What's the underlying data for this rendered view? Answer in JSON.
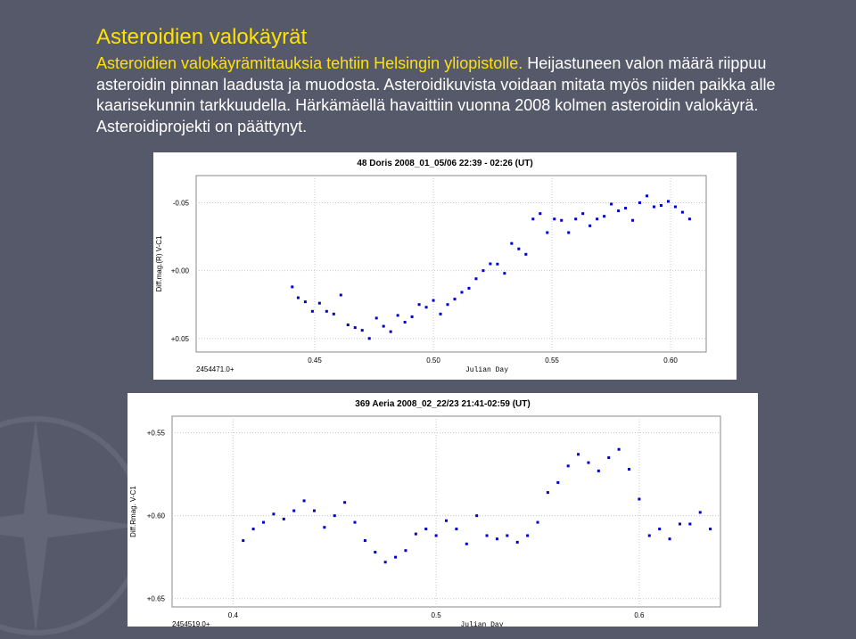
{
  "slide": {
    "title": "Asteroidien valokäyrät",
    "subtitle_line": "Asteroidien valokäyrämittauksia tehtiin Helsingin yliopistolle.",
    "body": "Heijastuneen valon määrä riippuu asteroidin pinnan laadusta ja muodosta. Asteroidikuvista voidaan mitata myös niiden paikka alle kaarisekunnin tarkkuudella. Härkämäellä havaittiin vuonna 2008 kolmen asteroidin valokäyrä. Asteroidiprojekti on päättynyt.",
    "accent_color": "#ffe200",
    "background_color": "#56596a"
  },
  "chart_data": [
    {
      "type": "scatter",
      "title": "48 Doris 2008_01_05/06  22:39 - 02:26 (UT)",
      "xlabel": "Julian Day",
      "ylabel": "Diff.mag.(R) V-C1",
      "x_offset_label": "2454471.0+",
      "xlim": [
        0.4,
        0.615
      ],
      "ylim": [
        -0.07,
        0.06
      ],
      "y_inverted": true,
      "xticks": [
        0.45,
        0.5,
        0.55,
        0.6
      ],
      "xtick_labels": [
        "0.45",
        "0.50",
        "0.55",
        "0.60"
      ],
      "yticks": [
        -0.05,
        0.0,
        0.05
      ],
      "ytick_labels": [
        "-0.05",
        "+0.00",
        "+0.05"
      ],
      "grid": true,
      "marker_color": "#0000cc",
      "x": [
        0.4405,
        0.443,
        0.446,
        0.449,
        0.452,
        0.455,
        0.458,
        0.461,
        0.464,
        0.467,
        0.47,
        0.473,
        0.476,
        0.479,
        0.482,
        0.485,
        0.488,
        0.491,
        0.494,
        0.497,
        0.5,
        0.503,
        0.506,
        0.509,
        0.512,
        0.515,
        0.518,
        0.521,
        0.524,
        0.527,
        0.53,
        0.533,
        0.536,
        0.539,
        0.542,
        0.545,
        0.548,
        0.551,
        0.554,
        0.557,
        0.56,
        0.563,
        0.566,
        0.569,
        0.572,
        0.575,
        0.578,
        0.581,
        0.584,
        0.587,
        0.59,
        0.593,
        0.596,
        0.599,
        0.602,
        0.605,
        0.608
      ],
      "y": [
        0.012,
        0.02,
        0.023,
        0.03,
        0.024,
        0.03,
        0.032,
        0.018,
        0.04,
        0.042,
        0.044,
        0.05,
        0.035,
        0.041,
        0.045,
        0.033,
        0.038,
        0.034,
        0.025,
        0.027,
        0.022,
        0.032,
        0.025,
        0.021,
        0.016,
        0.013,
        0.006,
        0.0,
        -0.005,
        -0.0048,
        0.002,
        -0.02,
        -0.016,
        -0.012,
        -0.038,
        -0.042,
        -0.028,
        -0.038,
        -0.037,
        -0.028,
        -0.038,
        -0.042,
        -0.033,
        -0.038,
        -0.04,
        -0.049,
        -0.044,
        -0.046,
        -0.037,
        -0.05,
        -0.055,
        -0.047,
        -0.048,
        -0.051,
        -0.047,
        -0.043,
        -0.038
      ],
      "sample_count": 57
    },
    {
      "type": "scatter",
      "title": "369 Aeria 2008_02_22/23  21:41-02:59 (UT)",
      "xlabel": "Julian Day",
      "ylabel": "Diff.Rmag. V-C1",
      "x_offset_label": "2454519.0+",
      "xlim": [
        0.37,
        0.64
      ],
      "ylim": [
        0.54,
        0.655
      ],
      "y_inverted": true,
      "xticks": [
        0.4,
        0.5,
        0.6
      ],
      "xtick_labels": [
        "0.4",
        "0.5",
        "0.6"
      ],
      "yticks": [
        0.55,
        0.6,
        0.65
      ],
      "ytick_labels": [
        "+0.55",
        "+0.60",
        "+0.65"
      ],
      "grid": true,
      "marker_color": "#0000cc",
      "x": [
        0.405,
        0.41,
        0.415,
        0.42,
        0.425,
        0.43,
        0.435,
        0.44,
        0.445,
        0.45,
        0.455,
        0.46,
        0.465,
        0.47,
        0.475,
        0.48,
        0.485,
        0.49,
        0.495,
        0.5,
        0.505,
        0.51,
        0.515,
        0.52,
        0.525,
        0.53,
        0.535,
        0.54,
        0.545,
        0.55,
        0.555,
        0.56,
        0.565,
        0.57,
        0.575,
        0.58,
        0.585,
        0.59,
        0.595,
        0.6,
        0.605,
        0.61,
        0.615,
        0.62,
        0.625,
        0.63,
        0.635
      ],
      "y": [
        0.615,
        0.608,
        0.604,
        0.599,
        0.602,
        0.597,
        0.591,
        0.597,
        0.607,
        0.6,
        0.592,
        0.604,
        0.615,
        0.622,
        0.628,
        0.625,
        0.621,
        0.611,
        0.608,
        0.612,
        0.603,
        0.608,
        0.617,
        0.6,
        0.612,
        0.614,
        0.612,
        0.616,
        0.612,
        0.604,
        0.586,
        0.58,
        0.57,
        0.563,
        0.568,
        0.573,
        0.565,
        0.56,
        0.572,
        0.59,
        0.612,
        0.608,
        0.614,
        0.605,
        0.605,
        0.598,
        0.608
      ],
      "sample_count": 47
    }
  ]
}
